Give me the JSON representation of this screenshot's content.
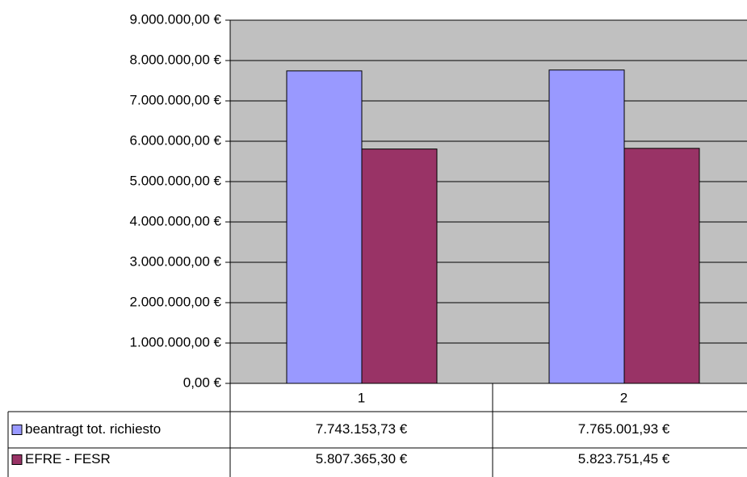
{
  "chart_data": {
    "type": "bar",
    "categories": [
      "1",
      "2"
    ],
    "series": [
      {
        "name": "beantragt tot. richiesto",
        "color": "#9999ff",
        "values": [
          7743153.73,
          7765001.93
        ],
        "value_labels": [
          "7.743.153,73 €",
          "7.765.001,93 €"
        ]
      },
      {
        "name": "EFRE - FESR",
        "color": "#993366",
        "values": [
          5807365.3,
          5823751.45
        ],
        "value_labels": [
          "5.807.365,30 €",
          "5.823.751,45 €"
        ]
      }
    ],
    "ylim": [
      0,
      9000000
    ],
    "yticks": [
      {
        "value": 0,
        "label": "0,00 €"
      },
      {
        "value": 1000000,
        "label": "1.000.000,00 €"
      },
      {
        "value": 2000000,
        "label": "2.000.000,00 €"
      },
      {
        "value": 3000000,
        "label": "3.000.000,00 €"
      },
      {
        "value": 4000000,
        "label": "4.000.000,00 €"
      },
      {
        "value": 5000000,
        "label": "5.000.000,00 €"
      },
      {
        "value": 6000000,
        "label": "6.000.000,00 €"
      },
      {
        "value": 7000000,
        "label": "7.000.000,00 €"
      },
      {
        "value": 8000000,
        "label": "8.000.000,00 €"
      },
      {
        "value": 9000000,
        "label": "9.000.000,00 €"
      }
    ],
    "grid": true,
    "background": "#c0c0c0"
  }
}
